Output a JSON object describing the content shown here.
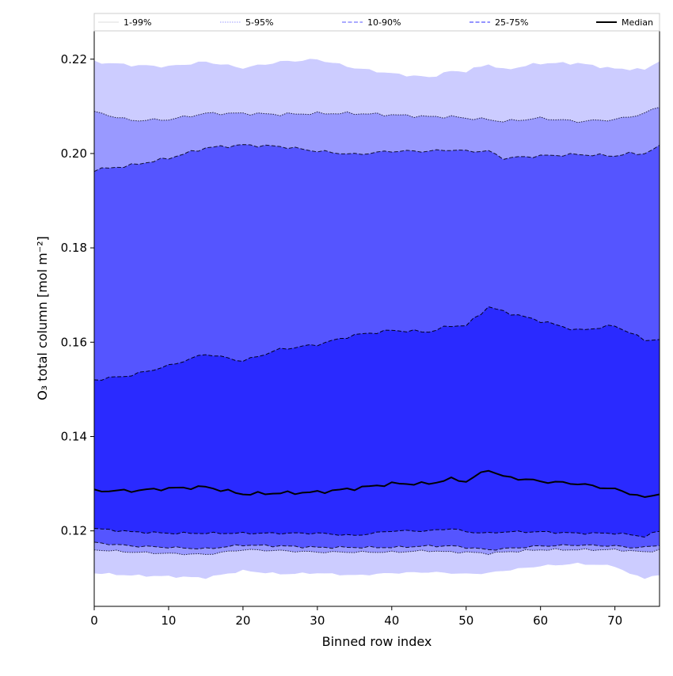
{
  "chart_data": {
    "type": "area",
    "xlabel": "Binned row index",
    "ylabel": "O₃ total column [mol m⁻²]",
    "xlim": [
      0,
      76
    ],
    "ylim": [
      0.104,
      0.226
    ],
    "xticks": [
      0,
      10,
      20,
      30,
      40,
      50,
      60,
      70
    ],
    "yticks": [
      0.12,
      0.14,
      0.16,
      0.18,
      0.2,
      0.22
    ],
    "xtick_labels": [
      "0",
      "10",
      "20",
      "30",
      "40",
      "50",
      "60",
      "70"
    ],
    "ytick_labels": [
      "0.12",
      "0.14",
      "0.16",
      "0.18",
      "0.20",
      "0.22"
    ],
    "grid": false,
    "legend_position": "top",
    "x_anchor": [
      0,
      5,
      10,
      15,
      20,
      25,
      30,
      35,
      40,
      45,
      48,
      50,
      53,
      55,
      60,
      65,
      70,
      72,
      74,
      76
    ],
    "bands": [
      {
        "name": "1-99%",
        "fill_color": "#ccccff",
        "line_color": "#ffffff",
        "line_style": "solid",
        "lower": [
          0.111,
          0.1105,
          0.1103,
          0.11,
          0.1115,
          0.1108,
          0.111,
          0.1105,
          0.111,
          0.1112,
          0.111,
          0.1108,
          0.111,
          0.1115,
          0.1125,
          0.113,
          0.1125,
          0.1108,
          0.11,
          0.1105
        ],
        "upper": [
          0.2195,
          0.2188,
          0.2185,
          0.2195,
          0.2182,
          0.2195,
          0.22,
          0.2182,
          0.217,
          0.2162,
          0.2175,
          0.2175,
          0.219,
          0.2178,
          0.2192,
          0.2192,
          0.218,
          0.218,
          0.2178,
          0.2198
        ]
      },
      {
        "name": "5-95%",
        "fill_color": "#9999ff",
        "line_color": "#222244",
        "line_style": "dotted",
        "lower": [
          0.116,
          0.1155,
          0.1152,
          0.115,
          0.116,
          0.1158,
          0.1155,
          0.1155,
          0.1155,
          0.1158,
          0.1155,
          0.1155,
          0.1152,
          0.1155,
          0.116,
          0.116,
          0.116,
          0.1158,
          0.1155,
          0.116
        ],
        "upper": [
          0.2088,
          0.207,
          0.2072,
          0.2085,
          0.2085,
          0.2083,
          0.2085,
          0.2085,
          0.2082,
          0.2078,
          0.2078,
          0.2075,
          0.2072,
          0.2068,
          0.2075,
          0.2068,
          0.2072,
          0.2078,
          0.2085,
          0.21
        ]
      },
      {
        "name": "10-90%",
        "fill_color": "#5555ff",
        "line_color": "#111133",
        "line_style": "dashed",
        "lower": [
          0.1175,
          0.1168,
          0.1165,
          0.1162,
          0.117,
          0.1168,
          0.1165,
          0.1165,
          0.1165,
          0.1168,
          0.1168,
          0.1165,
          0.116,
          0.1162,
          0.1168,
          0.117,
          0.1168,
          0.1165,
          0.1165,
          0.117
        ],
        "upper": [
          0.1965,
          0.1975,
          0.199,
          0.2012,
          0.2018,
          0.2015,
          0.2005,
          0.1998,
          0.2005,
          0.2005,
          0.2008,
          0.2005,
          0.2005,
          0.199,
          0.1995,
          0.1998,
          0.1995,
          0.2,
          0.2,
          0.2015
        ]
      },
      {
        "name": "25-75%",
        "fill_color": "#2a2aff",
        "line_color": "#000022",
        "line_style": "dashed",
        "lower": [
          0.1205,
          0.1198,
          0.1195,
          0.1195,
          0.1195,
          0.1195,
          0.1195,
          0.119,
          0.12,
          0.12,
          0.1205,
          0.1198,
          0.1195,
          0.1198,
          0.1198,
          0.1195,
          0.1195,
          0.1192,
          0.1188,
          0.12
        ],
        "upper": [
          0.152,
          0.153,
          0.155,
          0.1575,
          0.156,
          0.1585,
          0.1595,
          0.1615,
          0.1625,
          0.1622,
          0.1635,
          0.1635,
          0.1675,
          0.1665,
          0.1645,
          0.1625,
          0.1635,
          0.162,
          0.1605,
          0.1605
        ]
      }
    ],
    "series": [
      {
        "name": "Median",
        "color": "#000000",
        "values": [
          0.1285,
          0.1285,
          0.129,
          0.1293,
          0.1278,
          0.128,
          0.1282,
          0.129,
          0.13,
          0.13,
          0.131,
          0.1305,
          0.133,
          0.1315,
          0.1305,
          0.13,
          0.1288,
          0.128,
          0.127,
          0.128
        ]
      }
    ]
  }
}
